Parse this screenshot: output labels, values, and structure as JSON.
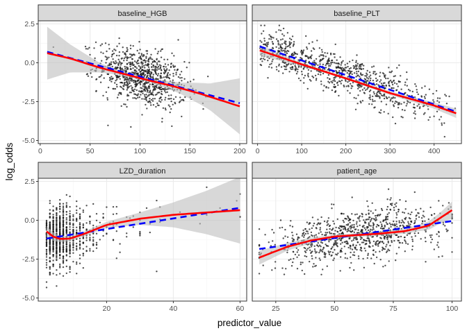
{
  "chart_data": {
    "type": "scatter",
    "xlabel": "predictor_value",
    "ylabel": "log_odds",
    "ylim": [
      -5.2,
      2.7
    ],
    "yticks": [
      2.5,
      0.0,
      -2.5,
      -5.0
    ],
    "ytick_labels": [
      "2.5",
      "0.0",
      "-2.5",
      "-5.0"
    ],
    "grid": true,
    "colors": {
      "points": "#1a1a1a",
      "smooth_line": "#ff0000",
      "linear_line": "#0000ff",
      "ribbon": "#bebebe",
      "strip_fill": "#d9d9d9",
      "panel_border": "#333333",
      "grid_major": "#ebebeb",
      "grid_minor": "#f5f5f5"
    },
    "panels": [
      {
        "name": "baseline_HGB",
        "xlim": [
          -2,
          207
        ],
        "xticks": [
          0,
          50,
          100,
          150,
          200
        ],
        "xtick_labels": [
          "0",
          "50",
          "100",
          "150",
          "200"
        ],
        "points_dist": {
          "x_mean": 102,
          "x_sd": 22,
          "x_min": 7,
          "x_max": 200,
          "y_mean": -0.8,
          "y_sd": 1.1,
          "slope": -0.0165
        },
        "smooth": [
          [
            7,
            0.62
          ],
          [
            30,
            0.28
          ],
          [
            60,
            -0.32
          ],
          [
            90,
            -0.82
          ],
          [
            110,
            -1.15
          ],
          [
            130,
            -1.45
          ],
          [
            160,
            -1.98
          ],
          [
            200,
            -2.8
          ]
        ],
        "ribbon_halfwidth": [
          [
            7,
            1.7
          ],
          [
            30,
            0.9
          ],
          [
            60,
            0.3
          ],
          [
            80,
            0.15
          ],
          [
            110,
            0.12
          ],
          [
            140,
            0.35
          ],
          [
            170,
            0.85
          ],
          [
            200,
            1.8
          ]
        ],
        "linear": [
          [
            7,
            0.7
          ],
          [
            200,
            -2.6
          ]
        ]
      },
      {
        "name": "baseline_PLT",
        "xlim": [
          -12,
          462
        ],
        "xticks": [
          0,
          100,
          200,
          300,
          400
        ],
        "xtick_labels": [
          "0",
          "100",
          "200",
          "300",
          "400"
        ],
        "points_dist": {
          "x_mean": 200,
          "x_sd": 95,
          "x_min": 5,
          "x_max": 450,
          "y_mean": -1.1,
          "y_sd": 0.8,
          "slope": -0.0095
        },
        "smooth": [
          [
            5,
            0.8
          ],
          [
            100,
            -0.1
          ],
          [
            200,
            -1.0
          ],
          [
            300,
            -1.95
          ],
          [
            400,
            -2.75
          ],
          [
            450,
            -3.25
          ]
        ],
        "ribbon_halfwidth": [
          [
            5,
            0.35
          ],
          [
            100,
            0.1
          ],
          [
            200,
            0.08
          ],
          [
            300,
            0.12
          ],
          [
            400,
            0.2
          ],
          [
            450,
            0.3
          ]
        ],
        "linear": [
          [
            5,
            1.05
          ],
          [
            450,
            -3.15
          ]
        ]
      },
      {
        "name": "LZD_duration",
        "xlim": [
          -0.5,
          62
        ],
        "xticks": [
          20,
          40,
          60
        ],
        "xtick_labels": [
          "20",
          "40",
          "60"
        ],
        "points_dist": {
          "x_mean": 9,
          "x_sd": 6,
          "x_min": 2,
          "x_max": 60,
          "y_mean": -0.8,
          "y_sd": 1.15,
          "slope": 0.035
        },
        "smooth": [
          [
            2,
            -0.72
          ],
          [
            4,
            -1.05
          ],
          [
            6,
            -1.2
          ],
          [
            9,
            -1.18
          ],
          [
            13,
            -0.9
          ],
          [
            20,
            -0.3
          ],
          [
            30,
            0.1
          ],
          [
            40,
            0.35
          ],
          [
            50,
            0.5
          ],
          [
            60,
            0.65
          ]
        ],
        "ribbon_halfwidth": [
          [
            2,
            0.35
          ],
          [
            6,
            0.2
          ],
          [
            12,
            0.15
          ],
          [
            20,
            0.2
          ],
          [
            30,
            0.4
          ],
          [
            40,
            0.8
          ],
          [
            50,
            1.4
          ],
          [
            60,
            2.15
          ]
        ],
        "linear": [
          [
            2,
            -1.18
          ],
          [
            60,
            0.8
          ]
        ]
      },
      {
        "name": "patient_age",
        "xlim": [
          15,
          104
        ],
        "xticks": [
          25,
          50,
          75,
          100
        ],
        "xtick_labels": [
          "25",
          "50",
          "75",
          "100"
        ],
        "points_dist": {
          "x_mean": 60,
          "x_sd": 18,
          "x_min": 18,
          "x_max": 100,
          "y_mean": -0.9,
          "y_sd": 1.0,
          "slope": 0.022
        },
        "smooth": [
          [
            18,
            -2.4
          ],
          [
            30,
            -1.7
          ],
          [
            40,
            -1.3
          ],
          [
            50,
            -1.05
          ],
          [
            60,
            -0.95
          ],
          [
            70,
            -0.85
          ],
          [
            80,
            -0.7
          ],
          [
            90,
            -0.35
          ],
          [
            100,
            0.65
          ]
        ],
        "ribbon_halfwidth": [
          [
            18,
            0.45
          ],
          [
            30,
            0.25
          ],
          [
            50,
            0.12
          ],
          [
            70,
            0.12
          ],
          [
            85,
            0.2
          ],
          [
            95,
            0.35
          ],
          [
            100,
            0.55
          ]
        ],
        "linear": [
          [
            18,
            -1.85
          ],
          [
            100,
            -0.05
          ]
        ]
      }
    ]
  }
}
